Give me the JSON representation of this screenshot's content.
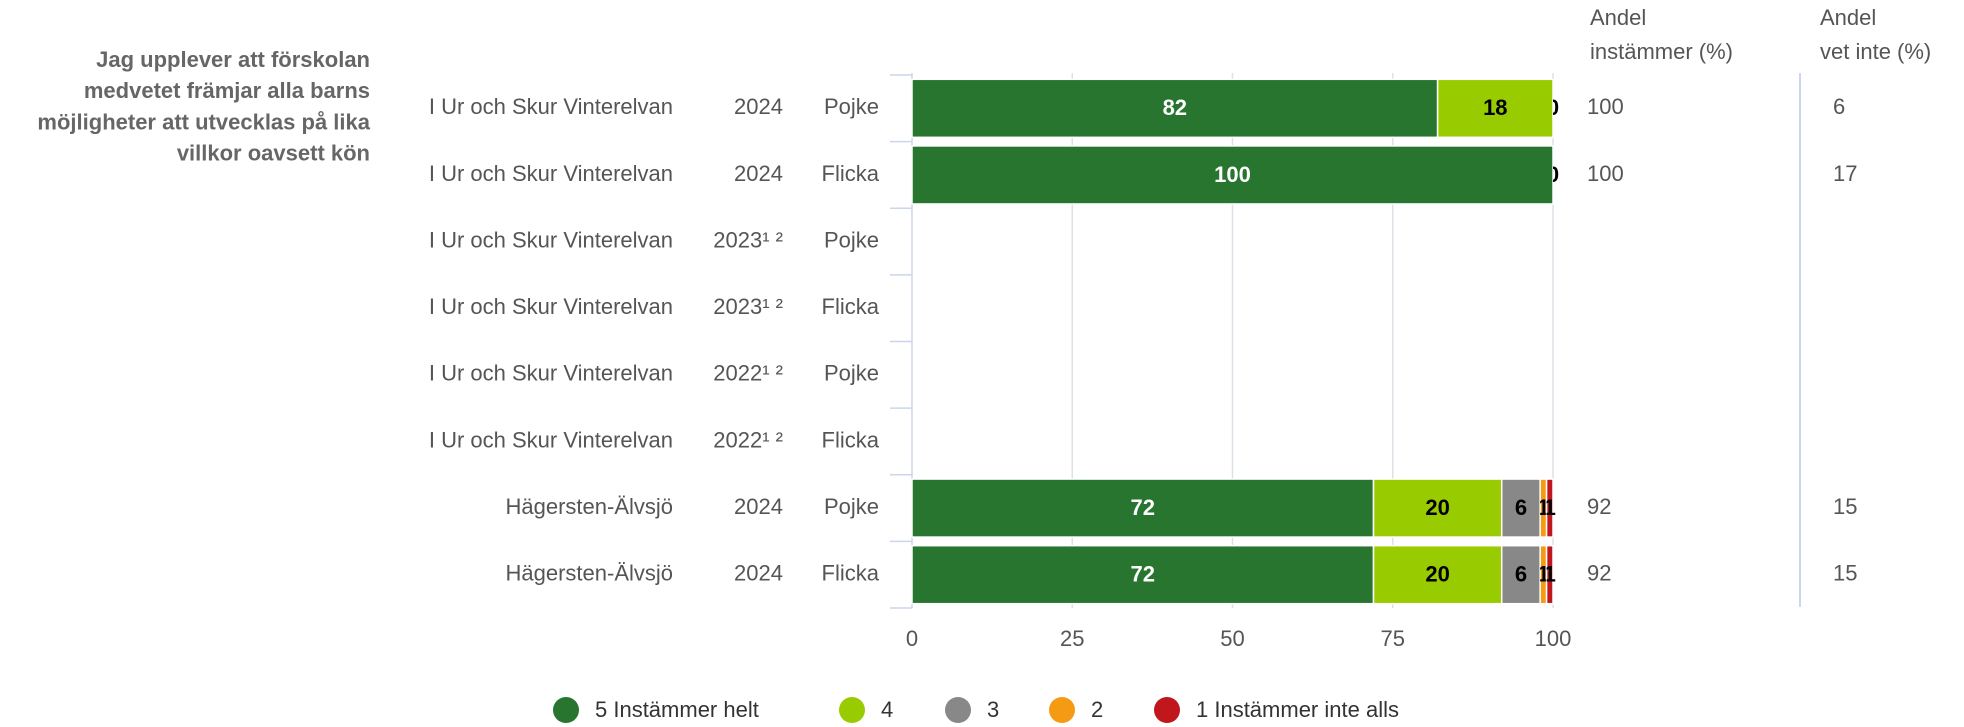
{
  "chart_data": {
    "type": "stacked_barh",
    "axis_title_lines": [
      "Jag upplever att förskolan",
      "medvetet främjar alla barns",
      "möjligheter att utvecklas på lika",
      "villkor oavsett kön"
    ],
    "categories": [
      [
        "I Ur och Skur Vinterelvan",
        "2024",
        "Pojke"
      ],
      [
        "I Ur och Skur Vinterelvan",
        "2024",
        "Flicka"
      ],
      [
        "I Ur och Skur Vinterelvan",
        "2023¹ ²",
        "Pojke"
      ],
      [
        "I Ur och Skur Vinterelvan",
        "2023¹ ²",
        "Flicka"
      ],
      [
        "I Ur och Skur Vinterelvan",
        "2022¹ ²",
        "Pojke"
      ],
      [
        "I Ur och Skur Vinterelvan",
        "2022¹ ²",
        "Flicka"
      ],
      [
        "Hägersten-Älvsjö",
        "2024",
        "Pojke"
      ],
      [
        "Hägersten-Älvsjö",
        "2024",
        "Flicka"
      ]
    ],
    "series": [
      {
        "name": "5 Instämmer helt",
        "color": "#27752f",
        "values": [
          82,
          100,
          null,
          null,
          null,
          null,
          72,
          72
        ]
      },
      {
        "name": "4",
        "color": "#99cc00",
        "values": [
          18,
          0,
          null,
          null,
          null,
          null,
          20,
          20
        ]
      },
      {
        "name": "3",
        "color": "#888888",
        "values": [
          0,
          null,
          null,
          null,
          null,
          null,
          6,
          6
        ]
      },
      {
        "name": "2",
        "color": "#f59b13",
        "values": [
          null,
          null,
          null,
          null,
          null,
          null,
          1,
          1
        ]
      },
      {
        "name": "1 Instämmer inte alls",
        "color": "#c0161c",
        "values": [
          null,
          null,
          null,
          null,
          null,
          null,
          1,
          1
        ]
      }
    ],
    "xlim": [
      0,
      100
    ],
    "xticks": [
      0,
      25,
      50,
      75,
      100
    ],
    "grid": true,
    "columns": [
      {
        "header_lines": [
          "Andel",
          "instämmer (%)"
        ],
        "values": [
          100,
          100,
          null,
          null,
          null,
          null,
          92,
          92
        ]
      },
      {
        "header_lines": [
          "Andel",
          "vet inte (%)"
        ],
        "values": [
          6,
          17,
          null,
          null,
          null,
          null,
          15,
          15
        ]
      }
    ]
  }
}
